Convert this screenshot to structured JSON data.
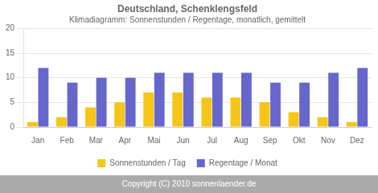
{
  "chart_data": {
    "type": "bar",
    "title": "Deutschland, Schenklengsfeld",
    "subtitle": "Klimadiagramm: Sonnenstunden / Regentage, monatlich, gemittelt",
    "categories": [
      "Jan",
      "Feb",
      "Mar",
      "Apr",
      "Mai",
      "Jun",
      "Jul",
      "Aug",
      "Sep",
      "Okt",
      "Nov",
      "Dez"
    ],
    "series": [
      {
        "name": "Sonnenstunden / Tag",
        "color": "#f5c518",
        "values": [
          1,
          2,
          4,
          5,
          7,
          7,
          6,
          6,
          5,
          3,
          2,
          1
        ]
      },
      {
        "name": "Regentage / Monat",
        "color": "#6666cc",
        "values": [
          12,
          9,
          10,
          10,
          11,
          11,
          11,
          11,
          9,
          9,
          11,
          12
        ]
      }
    ],
    "ylim": [
      0,
      20
    ],
    "yticks": [
      0,
      5,
      10,
      15,
      20
    ],
    "grid": true,
    "legend": "bottom",
    "annotations": [
      "Copyright (C) 2010 sonnenlaender.de"
    ]
  }
}
